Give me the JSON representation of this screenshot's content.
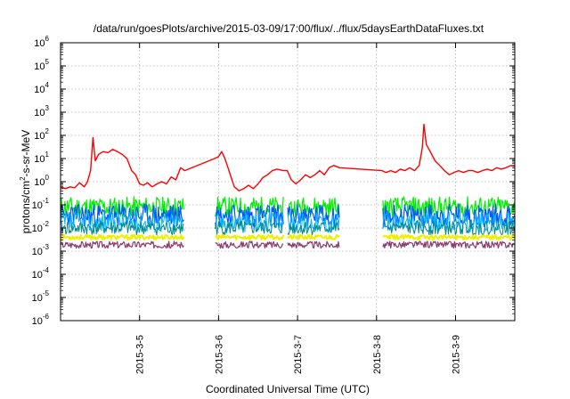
{
  "chart_data": {
    "type": "line",
    "title": "/data/run/goesPlots/archive/2015-03-09/17:00/flux/../flux/5daysEarthDataFluxes.txt",
    "xlabel": "Coordinated Universal Time (UTC)",
    "ylabel_parts": [
      "protons/cm",
      "2",
      "-s-sr-MeV"
    ],
    "y_scale": "log",
    "ylim": [
      1e-06,
      1000000.0
    ],
    "y_ticks": [
      {
        "base": "10",
        "exp": "-6",
        "value": 1e-06
      },
      {
        "base": "10",
        "exp": "-5",
        "value": 1e-05
      },
      {
        "base": "10",
        "exp": "-4",
        "value": 0.0001
      },
      {
        "base": "10",
        "exp": "-3",
        "value": 0.001
      },
      {
        "base": "10",
        "exp": "-2",
        "value": 0.01
      },
      {
        "base": "10",
        "exp": "-1",
        "value": 0.1
      },
      {
        "base": "10",
        "exp": "0",
        "value": 1
      },
      {
        "base": "10",
        "exp": "1",
        "value": 10
      },
      {
        "base": "10",
        "exp": "2",
        "value": 100
      },
      {
        "base": "10",
        "exp": "3",
        "value": 1000
      },
      {
        "base": "10",
        "exp": "4",
        "value": 10000
      },
      {
        "base": "10",
        "exp": "5",
        "value": 100000
      },
      {
        "base": "10",
        "exp": "6",
        "value": 1000000
      }
    ],
    "x_unit": "days since 2015-03-04 00:00 UTC",
    "xlim": [
      0.0,
      5.75
    ],
    "x_ticks": [
      {
        "label": "2015-3-5",
        "value": 1.0
      },
      {
        "label": "2015-3-6",
        "value": 2.0
      },
      {
        "label": "2015-3-7",
        "value": 3.0
      },
      {
        "label": "2015-3-8",
        "value": 4.0
      },
      {
        "label": "2015-3-9",
        "value": 5.0
      }
    ],
    "grid": true,
    "gaps": [
      [
        1.57,
        1.95
      ],
      [
        2.82,
        2.87
      ],
      [
        3.53,
        4.07
      ]
    ],
    "series": [
      {
        "color": "#ff0000",
        "width": 1.4,
        "points": [
          [
            0.0,
            0.6
          ],
          [
            0.06,
            0.5
          ],
          [
            0.12,
            0.6
          ],
          [
            0.18,
            0.55
          ],
          [
            0.24,
            0.9
          ],
          [
            0.3,
            0.6
          ],
          [
            0.34,
            1.0
          ],
          [
            0.38,
            3
          ],
          [
            0.41,
            80
          ],
          [
            0.44,
            8
          ],
          [
            0.48,
            15
          ],
          [
            0.54,
            20
          ],
          [
            0.6,
            18
          ],
          [
            0.66,
            25
          ],
          [
            0.72,
            20
          ],
          [
            0.78,
            15
          ],
          [
            0.84,
            10
          ],
          [
            0.9,
            3
          ],
          [
            0.95,
            2
          ],
          [
            1.0,
            0.8
          ],
          [
            1.05,
            0.7
          ],
          [
            1.1,
            0.9
          ],
          [
            1.16,
            0.6
          ],
          [
            1.22,
            0.8
          ],
          [
            1.28,
            1.0
          ],
          [
            1.34,
            0.8
          ],
          [
            1.4,
            1.6
          ],
          [
            1.46,
            1.2
          ],
          [
            1.52,
            4
          ],
          [
            1.57,
            3
          ],
          [
            1.95,
            10
          ],
          [
            2.0,
            12
          ],
          [
            2.04,
            20
          ],
          [
            2.08,
            10
          ],
          [
            2.12,
            4
          ],
          [
            2.16,
            1.5
          ],
          [
            2.2,
            0.6
          ],
          [
            2.26,
            0.4
          ],
          [
            2.32,
            0.5
          ],
          [
            2.38,
            0.7
          ],
          [
            2.44,
            0.5
          ],
          [
            2.5,
            0.8
          ],
          [
            2.56,
            1.5
          ],
          [
            2.62,
            2
          ],
          [
            2.68,
            3
          ],
          [
            2.74,
            3.5
          ],
          [
            2.82,
            3
          ],
          [
            2.87,
            3
          ],
          [
            2.92,
            1.2
          ],
          [
            2.98,
            0.8
          ],
          [
            3.04,
            1.2
          ],
          [
            3.1,
            2
          ],
          [
            3.16,
            1.5
          ],
          [
            3.22,
            2
          ],
          [
            3.28,
            3
          ],
          [
            3.34,
            2
          ],
          [
            3.4,
            4
          ],
          [
            3.46,
            5
          ],
          [
            3.53,
            4
          ],
          [
            4.07,
            3
          ],
          [
            4.12,
            2.5
          ],
          [
            4.18,
            3
          ],
          [
            4.24,
            2.5
          ],
          [
            4.3,
            3.5
          ],
          [
            4.36,
            3
          ],
          [
            4.42,
            4
          ],
          [
            4.48,
            3
          ],
          [
            4.54,
            5
          ],
          [
            4.58,
            30
          ],
          [
            4.6,
            300
          ],
          [
            4.63,
            40
          ],
          [
            4.68,
            20
          ],
          [
            4.74,
            8
          ],
          [
            4.8,
            5
          ],
          [
            4.86,
            3
          ],
          [
            4.92,
            2
          ],
          [
            4.98,
            2.5
          ],
          [
            5.04,
            3
          ],
          [
            5.1,
            2.5
          ],
          [
            5.16,
            3
          ],
          [
            5.22,
            3
          ],
          [
            5.28,
            2.5
          ],
          [
            5.34,
            3
          ],
          [
            5.4,
            3.5
          ],
          [
            5.46,
            3
          ],
          [
            5.52,
            4
          ],
          [
            5.58,
            3.5
          ],
          [
            5.64,
            4
          ],
          [
            5.7,
            5
          ],
          [
            5.75,
            4.5
          ]
        ]
      },
      {
        "color": "#00ee00",
        "width": 1.2,
        "base": 0.08,
        "amp": 0.45,
        "seed": 11
      },
      {
        "color": "#0055ff",
        "width": 1.2,
        "base": 0.035,
        "amp": 0.5,
        "seed": 23
      },
      {
        "color": "#00b4ff",
        "width": 1.0,
        "base": 0.018,
        "amp": 0.45,
        "seed": 37
      },
      {
        "color": "#008a8a",
        "width": 1.0,
        "base": 0.01,
        "amp": 0.3,
        "seed": 41
      },
      {
        "color": "#eeee00",
        "width": 2.0,
        "base": 0.004,
        "amp": 0.1,
        "seed": 53
      },
      {
        "color": "#8b3a6e",
        "width": 1.2,
        "base": 0.0019,
        "amp": 0.15,
        "seed": 67
      }
    ]
  }
}
